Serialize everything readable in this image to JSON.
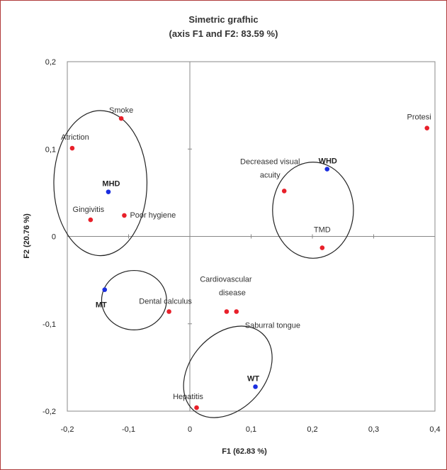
{
  "chart_data": {
    "type": "scatter",
    "title": "Simetric grafhic",
    "subtitle": "(axis F1 and F2: 83.59 %)",
    "xlabel": "F1 (62.83 %)",
    "ylabel": "F2 (20.76 %)",
    "xlim": [
      -0.2,
      0.4
    ],
    "ylim": [
      -0.2,
      0.2
    ],
    "x_ticks": [
      "-0,2",
      "-0,1",
      "0",
      "0,1",
      "0,2",
      "0,3",
      "0,4"
    ],
    "y_ticks": [
      "0,2",
      "0,1",
      "0",
      "-0,1",
      "-0,2"
    ],
    "grid": false,
    "series": [
      {
        "color": "#e8202a",
        "points": [
          {
            "x": -0.112,
            "y": 0.135,
            "label": "Smoke"
          },
          {
            "x": -0.192,
            "y": 0.101,
            "label": "Atriction"
          },
          {
            "x": -0.162,
            "y": 0.019,
            "label": "Gingivitis"
          },
          {
            "x": -0.107,
            "y": 0.024,
            "label": "Poor hygiene"
          },
          {
            "x": 0.387,
            "y": 0.124,
            "label": "Protesi"
          },
          {
            "x": 0.154,
            "y": 0.052,
            "label": "Decreased visual acuity"
          },
          {
            "x": 0.216,
            "y": -0.013,
            "label": "TMD"
          },
          {
            "x": -0.034,
            "y": -0.086,
            "label": "Dental calculus"
          },
          {
            "x": 0.06,
            "y": -0.086,
            "label": "Cardiovascular disease"
          },
          {
            "x": 0.076,
            "y": -0.086,
            "label": "Saburral tongue"
          },
          {
            "x": 0.011,
            "y": -0.196,
            "label": "Hepatitis"
          }
        ]
      },
      {
        "color": "#1a2ee0",
        "points": [
          {
            "x": -0.133,
            "y": 0.051,
            "label": "MHD"
          },
          {
            "x": 0.224,
            "y": 0.077,
            "label": "WHD"
          },
          {
            "x": -0.139,
            "y": -0.061,
            "label": "MT"
          },
          {
            "x": 0.107,
            "y": -0.172,
            "label": "WT"
          }
        ]
      }
    ],
    "groups": [
      {
        "cx": -0.146,
        "cy": 0.061,
        "rx": 0.076,
        "ry": 0.083
      },
      {
        "cx": 0.201,
        "cy": 0.03,
        "rx": 0.066,
        "ry": 0.055
      },
      {
        "cx": -0.091,
        "cy": -0.073,
        "rx": 0.053,
        "ry": 0.034
      },
      {
        "cx": 0.062,
        "cy": -0.155,
        "rx": 0.061,
        "ry": 0.059,
        "rotate": 42
      }
    ]
  }
}
